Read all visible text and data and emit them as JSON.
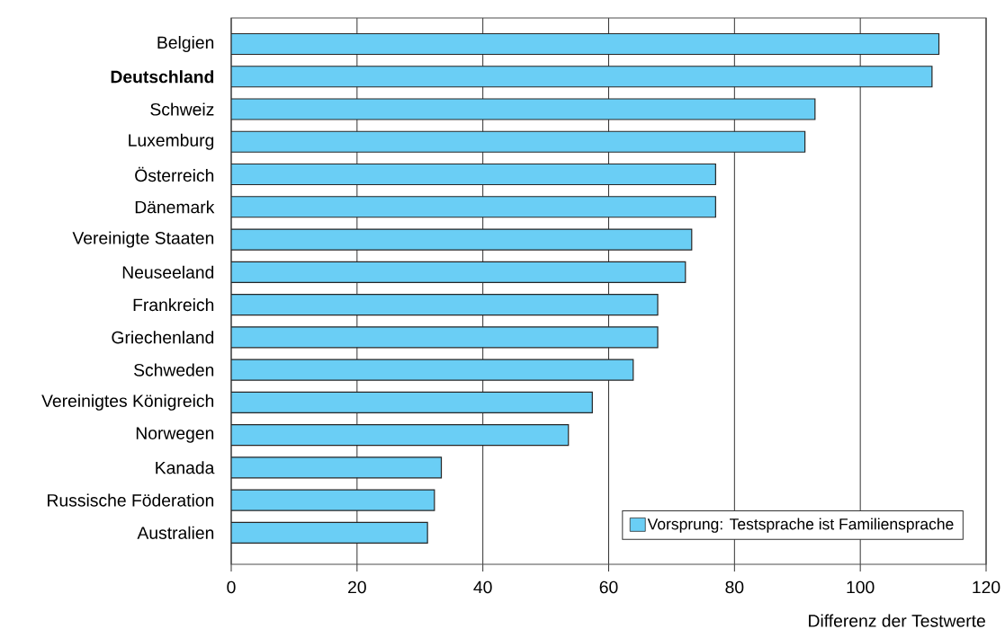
{
  "chart_data": {
    "type": "bar",
    "orientation": "horizontal",
    "xlabel": "Differenz der Testwerte",
    "categories": [
      "Belgien",
      "**Deutschland**",
      "Schweiz",
      "Luxemburg",
      "Österreich",
      "Dänemark",
      "Vereinigte Staaten",
      "Neuseeland",
      "Frankreich",
      "Griechenland",
      "Schweden",
      "Vereinigtes Königreich",
      "Norwegen",
      "Kanada",
      "Russische Föderation",
      "Australien"
    ],
    "series": [
      {
        "name": "Vorsprung: Testsprache ist Familiensprache",
        "color": "#6acef5",
        "values": [
          112.5,
          111.4,
          92.8,
          91.2,
          77.0,
          77.0,
          73.2,
          72.2,
          67.8,
          67.8,
          63.9,
          57.4,
          53.6,
          33.4,
          32.3,
          31.2
        ]
      }
    ],
    "xlim": [
      0,
      120
    ],
    "xticks": [
      0,
      20,
      40,
      60,
      80,
      100,
      120
    ],
    "grid": "x",
    "legend": "bottom right"
  }
}
